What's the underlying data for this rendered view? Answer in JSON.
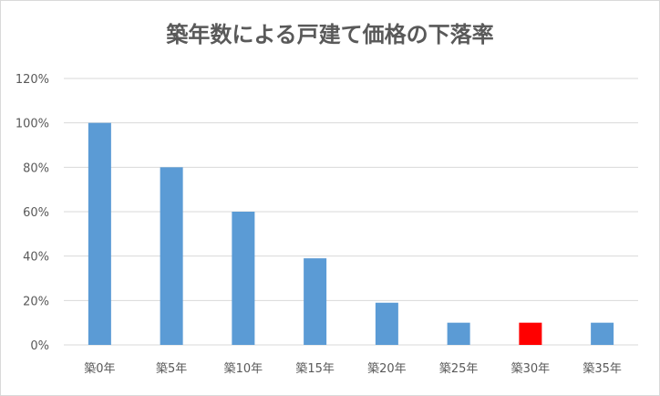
{
  "chart_data": {
    "type": "bar",
    "title": "築年数による戸建て価格の下落率",
    "xlabel": "",
    "ylabel": "",
    "categories": [
      "築0年",
      "築5年",
      "築10年",
      "築15年",
      "築20年",
      "築25年",
      "築30年",
      "築35年"
    ],
    "series": [
      {
        "values": [
          100,
          80,
          60,
          39,
          19,
          10,
          10,
          10
        ]
      }
    ],
    "ylim": [
      0,
      120
    ],
    "yticks": [
      "0%",
      "20%",
      "40%",
      "60%",
      "80%",
      "100%",
      "120%"
    ],
    "grid": true,
    "legend": "none",
    "colors": {
      "bar": "#5b9bd5",
      "highlight": "#ff0000",
      "grid": "#d9d9d9",
      "text": "#595959"
    },
    "highlight_category": "築30年"
  }
}
